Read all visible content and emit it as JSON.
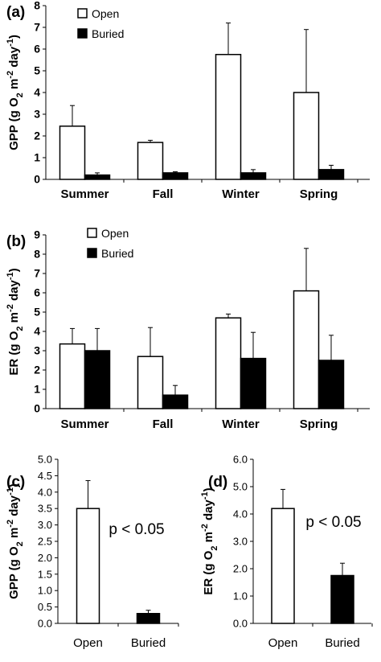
{
  "colors": {
    "open": "#ffffff",
    "buried": "#000000",
    "stroke": "#000000"
  },
  "chart_data": [
    {
      "panel": "(a)",
      "type": "bar",
      "categories": [
        "Summer",
        "Fall",
        "Winter",
        "Spring"
      ],
      "series": [
        {
          "name": "Open",
          "values": [
            2.45,
            1.7,
            5.75,
            4.0
          ],
          "errors": [
            0.95,
            0.1,
            1.45,
            2.9
          ]
        },
        {
          "name": "Buried",
          "values": [
            0.2,
            0.3,
            0.3,
            0.45
          ],
          "errors": [
            0.1,
            0.05,
            0.15,
            0.2
          ]
        }
      ],
      "ylabel": "GPP (g O2 m-2 day-1)",
      "ylim": [
        0,
        8
      ],
      "yticks": [
        "0",
        "1",
        "2",
        "3",
        "4",
        "5",
        "6",
        "7",
        "8"
      ],
      "legend": [
        "Open",
        "Buried"
      ]
    },
    {
      "panel": "(b)",
      "type": "bar",
      "categories": [
        "Summer",
        "Fall",
        "Winter",
        "Spring"
      ],
      "series": [
        {
          "name": "Open",
          "values": [
            3.35,
            2.7,
            4.7,
            6.1
          ],
          "errors": [
            0.8,
            1.5,
            0.2,
            2.2
          ]
        },
        {
          "name": "Buried",
          "values": [
            3.0,
            0.7,
            2.6,
            2.5
          ],
          "errors": [
            1.15,
            0.5,
            1.35,
            1.3
          ]
        }
      ],
      "ylabel": "ER (g O2 m-2 day-1)",
      "ylim": [
        0,
        9
      ],
      "yticks": [
        "0",
        "1",
        "2",
        "3",
        "4",
        "5",
        "6",
        "7",
        "8",
        "9"
      ],
      "legend": [
        "Open",
        "Buried"
      ]
    },
    {
      "panel": "(c)",
      "type": "bar",
      "categories": [
        "Open",
        "Buried"
      ],
      "values": [
        3.5,
        0.3
      ],
      "errors": [
        0.85,
        0.1
      ],
      "ylabel": "GPP (g O2 m-2 day-1)",
      "ylim": [
        0,
        5
      ],
      "yticks": [
        "0.0",
        "0.5",
        "1.0",
        "1.5",
        "2.0",
        "2.5",
        "3.0",
        "3.5",
        "4.0",
        "4.5",
        "5.0"
      ],
      "annotation": "p < 0.05"
    },
    {
      "panel": "(d)",
      "type": "bar",
      "categories": [
        "Open",
        "Buried"
      ],
      "values": [
        4.2,
        1.75
      ],
      "errors": [
        0.7,
        0.45
      ],
      "ylabel": "ER (g O2 m-2 day-1)",
      "ylim": [
        0,
        6
      ],
      "yticks": [
        "0.0",
        "1.0",
        "2.0",
        "3.0",
        "4.0",
        "5.0",
        "6.0"
      ],
      "annotation": "p < 0.05"
    }
  ]
}
